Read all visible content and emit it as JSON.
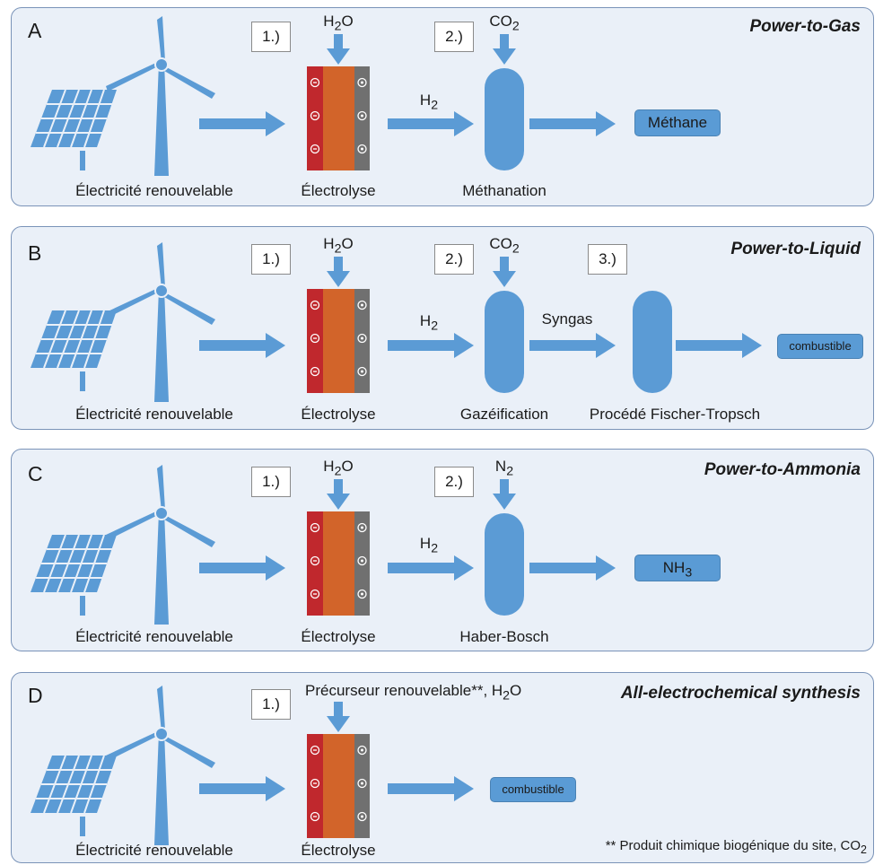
{
  "panels": [
    {
      "letter": "A",
      "title": "Power-to-Gas",
      "source_label": "Électricité renouvelable",
      "electrolysis_label": "Électrolyse",
      "steps": [
        "1.)",
        "2.)"
      ],
      "inputs": {
        "h2o": [
          "H",
          "2",
          "O"
        ],
        "reagent": [
          "CO",
          "2",
          ""
        ]
      },
      "h2_label": [
        "H",
        "2"
      ],
      "reactor1_label": "Méthanation",
      "product": [
        "Méthane",
        "",
        ""
      ]
    },
    {
      "letter": "B",
      "title": "Power-to-Liquid",
      "source_label": "Électricité renouvelable",
      "electrolysis_label": "Électrolyse",
      "steps": [
        "1.)",
        "2.)",
        "3.)"
      ],
      "inputs": {
        "h2o": [
          "H",
          "2",
          "O"
        ],
        "reagent": [
          "CO",
          "2",
          ""
        ]
      },
      "h2_label": [
        "H",
        "2"
      ],
      "reactor1_label": "Gazéification",
      "intermediate_label": "Syngas",
      "reactor2_label": "Procédé Fischer-Tropsch",
      "product": [
        "combustible",
        "",
        ""
      ]
    },
    {
      "letter": "C",
      "title": "Power-to-Ammonia",
      "source_label": "Électricité renouvelable",
      "electrolysis_label": "Électrolyse",
      "steps": [
        "1.)",
        "2.)"
      ],
      "inputs": {
        "h2o": [
          "H",
          "2",
          "O"
        ],
        "reagent": [
          "N",
          "2",
          ""
        ]
      },
      "h2_label": [
        "H",
        "2"
      ],
      "reactor1_label": "Haber-Bosch",
      "product": [
        "NH",
        "3",
        ""
      ]
    },
    {
      "letter": "D",
      "title": "All-electrochemical synthesis",
      "source_label": "Électricité renouvelable",
      "electrolysis_label": "Électrolyse",
      "steps": [
        "1.)"
      ],
      "inputs": {
        "precursor": [
          "Précurseur renouvelable**, H",
          "2",
          "O"
        ]
      },
      "product": [
        "combustible",
        "",
        ""
      ],
      "footnote": [
        "** Produit chimique biogénique du site, CO",
        "2"
      ]
    }
  ],
  "colors": {
    "panel_bg": "#eaf0f8",
    "panel_border": "#7a93b8",
    "arrow_blue": "#5b9bd5",
    "electrode_red": "#c0282d",
    "electrolyte_orange": "#d2642a",
    "electrode_gray": "#707070"
  },
  "icons": [
    "solar-panel-icon",
    "wind-turbine-icon",
    "electrolyzer-cell-icon",
    "reactor-vessel-icon",
    "arrow-right-icon",
    "arrow-down-icon"
  ]
}
